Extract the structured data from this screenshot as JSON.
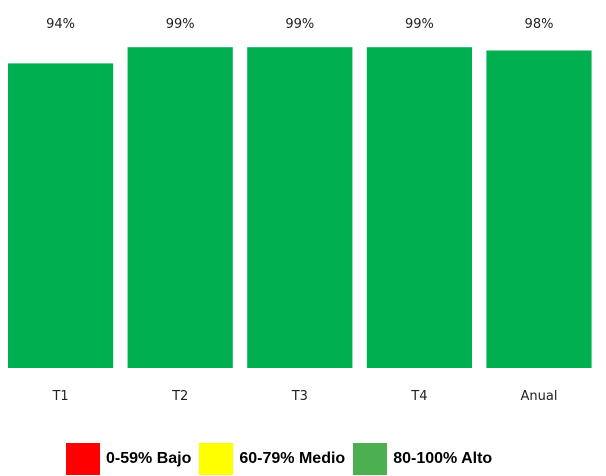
{
  "chart_data": {
    "type": "bar",
    "categories": [
      "T1",
      "T2",
      "T3",
      "T4",
      "Anual"
    ],
    "values": [
      94,
      99,
      99,
      99,
      98
    ],
    "value_labels": [
      "94%",
      "99%",
      "99%",
      "99%",
      "98%"
    ],
    "ylim": [
      0,
      100
    ],
    "bar_color": "#00B050",
    "grid": false
  },
  "legend": [
    {
      "label": "0-59% Bajo",
      "color": "#FF0000"
    },
    {
      "label": "60-79% Medio",
      "color": "#FFFF00"
    },
    {
      "label": "80-100% Alto",
      "color": "#4CAF50"
    }
  ]
}
